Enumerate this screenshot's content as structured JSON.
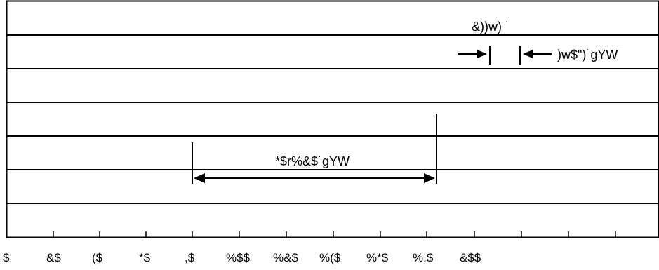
{
  "annotations": {
    "top_label": "&))w)  ˙",
    "right_label": ")w$\")˙gYW",
    "center_label": "*$r%&$˙gYW"
  },
  "axis": {
    "tick_labels": [
      "$",
      "&$",
      "($",
      "*$",
      ",$",
      "%$$",
      "%&$",
      "%($",
      "%*$",
      "%,$",
      "&$$"
    ]
  }
}
